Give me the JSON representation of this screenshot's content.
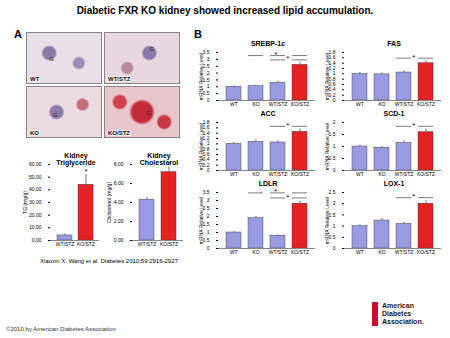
{
  "title": "Diabetic FXR KO kidney showed increased lipid accumulation.",
  "panel_labels": [
    "A",
    "B"
  ],
  "images": [
    {
      "label": "WT",
      "marker": "G"
    },
    {
      "label": "WT/STZ",
      "marker": "G"
    },
    {
      "label": "KO",
      "marker": "G"
    },
    {
      "label": "KO/STZ",
      "marker": "G"
    }
  ],
  "chart_data": [
    {
      "type": "bar",
      "title": "Kidney Triglyceride",
      "categories": [
        "WT/STZ",
        "KO/STZ"
      ],
      "values": [
        4,
        44
      ],
      "errors": [
        1,
        8
      ],
      "colors": [
        "#9a9ae0",
        "#e52222"
      ],
      "y_label": "TG (mg/g)",
      "ylim": [
        0,
        60
      ],
      "yticks": [
        {
          "value": 0,
          "label": "0.00"
        },
        {
          "value": 10,
          "label": "10.00"
        },
        {
          "value": 20,
          "label": "20.00"
        },
        {
          "value": 30,
          "label": "30.00"
        },
        {
          "value": 40,
          "label": "40.00"
        },
        {
          "value": 50,
          "label": "50.00"
        },
        {
          "value": 60,
          "label": "60.00"
        }
      ],
      "annotations": [
        {
          "category": "KO/STZ",
          "text": "*"
        }
      ]
    },
    {
      "type": "bar",
      "title": "Kidney Cholesterol",
      "categories": [
        "WT/STZ",
        "KO/STZ"
      ],
      "values": [
        4.3,
        7.2
      ],
      "errors": [
        0.2,
        0.5
      ],
      "colors": [
        "#9a9ae0",
        "#e52222"
      ],
      "y_label": "Cholesterol (mg/g)",
      "ylim": [
        0,
        8
      ],
      "yticks": [
        {
          "value": 0,
          "label": "0.00"
        },
        {
          "value": 2,
          "label": "2.00"
        },
        {
          "value": 4,
          "label": "4.00"
        },
        {
          "value": 6,
          "label": "6.00"
        },
        {
          "value": 8,
          "label": "8.00"
        }
      ],
      "annotations": [
        {
          "category": "KO/STZ",
          "text": "*"
        }
      ]
    },
    {
      "type": "bar",
      "title": "SREBP-1c",
      "categories": [
        "WT",
        "KO",
        "WT/STZ",
        "KO/STZ"
      ],
      "values": [
        1.0,
        1.05,
        1.3,
        2.6
      ],
      "errors": [
        0.05,
        0.05,
        0.1,
        0.15
      ],
      "colors": [
        "#9a9ae0",
        "#9a9ae0",
        "#9a9ae0",
        "#e52222"
      ],
      "y_label": "mRNA Relative Level",
      "ylim": [
        0,
        3.5
      ],
      "yticks": [
        0,
        0.5,
        1,
        1.5,
        2,
        2.5,
        3,
        3.5
      ],
      "significance": [
        {
          "from": 2,
          "to": 3,
          "text": "*"
        },
        {
          "from": 1,
          "to": 3,
          "text": "*"
        }
      ]
    },
    {
      "type": "bar",
      "title": "FAS",
      "categories": [
        "WT",
        "KO",
        "WT/STZ",
        "KO/STZ"
      ],
      "values": [
        1.0,
        0.98,
        1.05,
        1.4
      ],
      "errors": [
        0.05,
        0.05,
        0.06,
        0.08
      ],
      "colors": [
        "#9a9ae0",
        "#9a9ae0",
        "#9a9ae0",
        "#e52222"
      ],
      "y_label": "mRNA Relative Level",
      "ylim": [
        0,
        1.8
      ],
      "yticks": [
        0,
        0.2,
        0.4,
        0.6,
        0.8,
        1,
        1.2,
        1.4,
        1.6,
        1.8
      ],
      "significance": [
        {
          "from": 2,
          "to": 3,
          "text": "*"
        }
      ]
    },
    {
      "type": "bar",
      "title": "ACC",
      "categories": [
        "WT",
        "KO",
        "WT/STZ",
        "KO/STZ"
      ],
      "values": [
        1.0,
        1.08,
        1.05,
        1.45
      ],
      "errors": [
        0.05,
        0.06,
        0.06,
        0.1
      ],
      "colors": [
        "#9a9ae0",
        "#9a9ae0",
        "#9a9ae0",
        "#e52222"
      ],
      "y_label": "mRNA Relative Level",
      "ylim": [
        0,
        1.8
      ],
      "yticks": [
        0,
        0.2,
        0.4,
        0.6,
        0.8,
        1,
        1.2,
        1.4,
        1.6,
        1.8
      ],
      "significance": [
        {
          "from": 2,
          "to": 3,
          "text": "*"
        }
      ]
    },
    {
      "type": "bar",
      "title": "SCD-1",
      "categories": [
        "WT",
        "KO",
        "WT/STZ",
        "KO/STZ"
      ],
      "values": [
        1.0,
        0.95,
        1.15,
        1.6
      ],
      "errors": [
        0.05,
        0.05,
        0.08,
        0.12
      ],
      "colors": [
        "#9a9ae0",
        "#9a9ae0",
        "#9a9ae0",
        "#e52222"
      ],
      "y_label": "mRNA Relative Level",
      "ylim": [
        0,
        2
      ],
      "yticks": [
        0,
        0.5,
        1,
        1.5,
        2
      ],
      "significance": [
        {
          "from": 2,
          "to": 3,
          "text": "*"
        }
      ]
    },
    {
      "type": "bar",
      "title": "LDLR",
      "categories": [
        "WT",
        "KO",
        "WT/STZ",
        "KO/STZ"
      ],
      "values": [
        1.0,
        1.9,
        0.8,
        2.8
      ],
      "errors": [
        0.05,
        0.1,
        0.05,
        0.15
      ],
      "colors": [
        "#9a9ae0",
        "#9a9ae0",
        "#9a9ae0",
        "#e52222"
      ],
      "y_label": "mRNA Relative Level",
      "ylim": [
        0,
        3.5
      ],
      "yticks": [
        0,
        0.5,
        1,
        1.5,
        2,
        2.5,
        3,
        3.5
      ],
      "significance": [
        {
          "from": 2,
          "to": 3,
          "text": "*"
        },
        {
          "from": 1,
          "to": 3,
          "text": "*"
        }
      ]
    },
    {
      "type": "bar",
      "title": "LOX-1",
      "categories": [
        "WT",
        "KO",
        "WT/STZ",
        "KO/STZ"
      ],
      "values": [
        1.0,
        1.25,
        1.1,
        2.0
      ],
      "errors": [
        0.05,
        0.08,
        0.06,
        0.12
      ],
      "colors": [
        "#9a9ae0",
        "#9a9ae0",
        "#9a9ae0",
        "#e52222"
      ],
      "y_label": "mRNA Relative Level",
      "ylim": [
        0,
        2.5
      ],
      "yticks": [
        0,
        0.5,
        1,
        1.5,
        2,
        2.5
      ],
      "significance": [
        {
          "from": 2,
          "to": 3,
          "text": "*"
        }
      ]
    }
  ],
  "citation": "Xiaoxin X. Wang et al. Diabetes 2010;59:2916-2927",
  "copyright": "©2010 by American Diabetes Association",
  "logo_text": [
    "American",
    "Diabetes",
    "Association."
  ]
}
